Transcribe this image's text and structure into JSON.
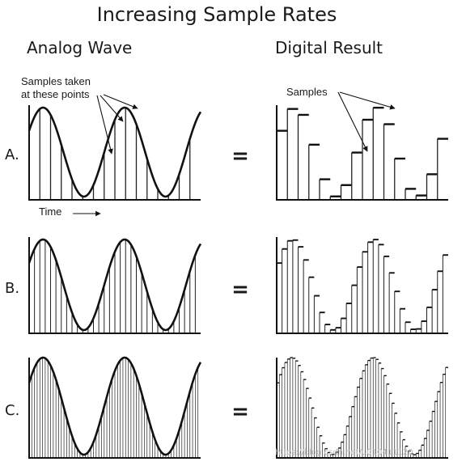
{
  "title": "Increasing Sample Rates",
  "columns": {
    "analog": "Analog Wave",
    "digital": "Digital Result"
  },
  "annotations": {
    "samples_taken_line1": "Samples taken",
    "samples_taken_line2": "at these points",
    "samples": "Samples",
    "time": "Time"
  },
  "equals": "=",
  "rows": [
    {
      "label": "A.",
      "samples": 16
    },
    {
      "label": "B.",
      "samples": 32
    },
    {
      "label": "C.",
      "samples": 64
    }
  ],
  "wave": {
    "cycles": 2.1,
    "phase_start": 0.5
  },
  "watermark": "https://blog.csdn.net/u010411120"
}
